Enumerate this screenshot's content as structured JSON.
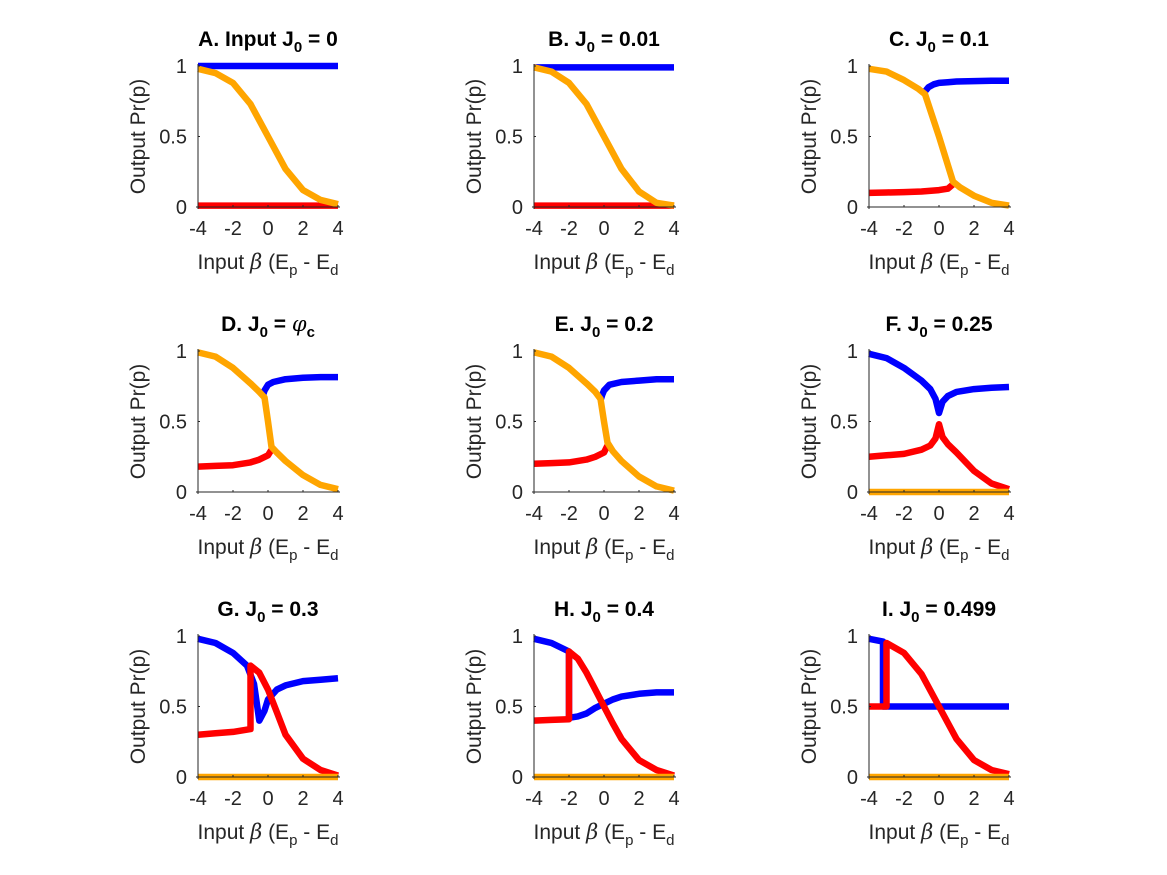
{
  "figure": {
    "colors": {
      "blue": "#0000ff",
      "red": "#ff0000",
      "orange": "#ffa500",
      "axis": "#262626"
    }
  },
  "chart_data": [
    {
      "panel": "A",
      "type": "line",
      "title": "A. Input J0 = 0",
      "title_parts": {
        "prefix": "A. Input J",
        "sub": "0",
        "suffix": " = 0",
        "greek": ""
      },
      "xlabel": "Input β (Ep - Ed)",
      "ylabel": "Output Pr(p)",
      "xlim": [
        -4,
        4
      ],
      "ylim": [
        0,
        1
      ],
      "xticks": [
        -4,
        -2,
        0,
        2,
        4
      ],
      "yticks": [
        0,
        0.5,
        1
      ],
      "series": [
        {
          "name": "blue",
          "color": "#0000ff",
          "x": [
            -4,
            4
          ],
          "y": [
            1,
            1
          ]
        },
        {
          "name": "red",
          "color": "#ff0000",
          "x": [
            -4,
            4
          ],
          "y": [
            0.01,
            0.01
          ]
        },
        {
          "name": "orange",
          "color": "#ffa500",
          "x": [
            -4,
            -3,
            -2,
            -1,
            0,
            1,
            2,
            3,
            4
          ],
          "y": [
            0.98,
            0.95,
            0.88,
            0.73,
            0.5,
            0.27,
            0.12,
            0.05,
            0.02
          ]
        }
      ]
    },
    {
      "panel": "B",
      "type": "line",
      "title": "B. J0 = 0.01",
      "title_parts": {
        "prefix": "B. J",
        "sub": "0",
        "suffix": " = 0.01",
        "greek": ""
      },
      "xlabel": "Input β (Ep - Ed)",
      "ylabel": "Output Pr(p)",
      "xlim": [
        -4,
        4
      ],
      "ylim": [
        0,
        1
      ],
      "xticks": [
        -4,
        -2,
        0,
        2,
        4
      ],
      "yticks": [
        0,
        0.5,
        1
      ],
      "series": [
        {
          "name": "blue",
          "color": "#0000ff",
          "x": [
            -4,
            4
          ],
          "y": [
            0.99,
            0.99
          ]
        },
        {
          "name": "red",
          "color": "#ff0000",
          "x": [
            -4,
            4
          ],
          "y": [
            0.01,
            0.01
          ]
        },
        {
          "name": "orange",
          "color": "#ffa500",
          "x": [
            -4,
            -3,
            -2,
            -1,
            0,
            1,
            2,
            3,
            4
          ],
          "y": [
            0.99,
            0.96,
            0.88,
            0.73,
            0.5,
            0.27,
            0.11,
            0.03,
            0.01
          ]
        }
      ]
    },
    {
      "panel": "C",
      "type": "line",
      "title": "C. J0 = 0.1",
      "title_parts": {
        "prefix": "C. J",
        "sub": "0",
        "suffix": " = 0.1",
        "greek": ""
      },
      "xlabel": "Input β (Ep - Ed)",
      "ylabel": "Output Pr(p)",
      "xlim": [
        -4,
        4
      ],
      "ylim": [
        0,
        1
      ],
      "xticks": [
        -4,
        -2,
        0,
        2,
        4
      ],
      "yticks": [
        0,
        0.5,
        1
      ],
      "series": [
        {
          "name": "blue",
          "color": "#0000ff",
          "x": [
            -0.8,
            -0.6,
            -0.3,
            0,
            0.5,
            1,
            2,
            3,
            4
          ],
          "y": [
            0.82,
            0.85,
            0.87,
            0.88,
            0.885,
            0.89,
            0.893,
            0.895,
            0.896
          ]
        },
        {
          "name": "red",
          "color": "#ff0000",
          "x": [
            -4,
            -3,
            -2,
            -1,
            0,
            0.5,
            0.8
          ],
          "y": [
            0.1,
            0.103,
            0.106,
            0.11,
            0.12,
            0.13,
            0.16
          ]
        },
        {
          "name": "orange",
          "color": "#ffa500",
          "x": [
            -4,
            -3,
            -2,
            -1.2,
            -0.8,
            0,
            0.8,
            1.2,
            2,
            3,
            4
          ],
          "y": [
            0.98,
            0.96,
            0.9,
            0.84,
            0.8,
            0.5,
            0.18,
            0.14,
            0.08,
            0.03,
            0.01
          ]
        }
      ]
    },
    {
      "panel": "D",
      "type": "line",
      "title": "D. J0 = φc",
      "title_parts": {
        "prefix": "D. J",
        "sub": "0",
        "suffix": " = ",
        "greek": "φ",
        "greek_sub": "c"
      },
      "xlabel": "Input β (Ep - Ed)",
      "ylabel": "Output Pr(p)",
      "xlim": [
        -4,
        4
      ],
      "ylim": [
        0,
        1
      ],
      "xticks": [
        -4,
        -2,
        0,
        2,
        4
      ],
      "yticks": [
        0,
        0.5,
        1
      ],
      "series": [
        {
          "name": "blue",
          "color": "#0000ff",
          "x": [
            -0.3,
            -0.2,
            0,
            0.3,
            1,
            2,
            3,
            4
          ],
          "y": [
            0.68,
            0.72,
            0.76,
            0.78,
            0.8,
            0.81,
            0.815,
            0.815
          ]
        },
        {
          "name": "red",
          "color": "#ff0000",
          "x": [
            -4,
            -3,
            -2,
            -1,
            -0.5,
            0,
            0.2
          ],
          "y": [
            0.18,
            0.185,
            0.19,
            0.21,
            0.23,
            0.26,
            0.3
          ]
        },
        {
          "name": "orange",
          "color": "#ffa500",
          "x": [
            -4,
            -3,
            -2,
            -1,
            -0.5,
            -0.2,
            0,
            0.2,
            0.5,
            1,
            2,
            3,
            4
          ],
          "y": [
            0.99,
            0.96,
            0.88,
            0.77,
            0.71,
            0.67,
            0.5,
            0.32,
            0.28,
            0.22,
            0.12,
            0.05,
            0.02
          ]
        }
      ]
    },
    {
      "panel": "E",
      "type": "line",
      "title": "E. J0 = 0.2",
      "title_parts": {
        "prefix": "E. J",
        "sub": "0",
        "suffix": " = 0.2",
        "greek": ""
      },
      "xlabel": "Input β (Ep - Ed)",
      "ylabel": "Output Pr(p)",
      "xlim": [
        -4,
        4
      ],
      "ylim": [
        0,
        1
      ],
      "xticks": [
        -4,
        -2,
        0,
        2,
        4
      ],
      "yticks": [
        0,
        0.5,
        1
      ],
      "series": [
        {
          "name": "blue",
          "color": "#0000ff",
          "x": [
            -0.2,
            -0.1,
            0,
            0.3,
            1,
            2,
            3,
            4
          ],
          "y": [
            0.65,
            0.69,
            0.72,
            0.76,
            0.78,
            0.79,
            0.8,
            0.8
          ]
        },
        {
          "name": "red",
          "color": "#ff0000",
          "x": [
            -4,
            -3,
            -2,
            -1,
            -0.5,
            0,
            0.2
          ],
          "y": [
            0.2,
            0.205,
            0.21,
            0.23,
            0.25,
            0.28,
            0.33
          ]
        },
        {
          "name": "orange",
          "color": "#ffa500",
          "x": [
            -4,
            -3,
            -2,
            -1,
            -0.5,
            -0.2,
            0,
            0.2,
            0.5,
            1,
            2,
            3,
            4
          ],
          "y": [
            0.99,
            0.96,
            0.88,
            0.77,
            0.71,
            0.66,
            0.5,
            0.35,
            0.29,
            0.22,
            0.11,
            0.04,
            0.01
          ]
        }
      ]
    },
    {
      "panel": "F",
      "type": "line",
      "title": "F. J0 = 0.25",
      "title_parts": {
        "prefix": "F. J",
        "sub": "0",
        "suffix": " = 0.25",
        "greek": ""
      },
      "xlabel": "Input β (Ep - Ed)",
      "ylabel": "Output Pr(p)",
      "xlim": [
        -4,
        4
      ],
      "ylim": [
        0,
        1
      ],
      "xticks": [
        -4,
        -2,
        0,
        2,
        4
      ],
      "yticks": [
        0,
        0.5,
        1
      ],
      "series": [
        {
          "name": "blue",
          "color": "#0000ff",
          "x": [
            -4,
            -3,
            -2,
            -1,
            -0.5,
            -0.2,
            0,
            0.2,
            0.5,
            1,
            2,
            3,
            4
          ],
          "y": [
            0.98,
            0.95,
            0.88,
            0.79,
            0.73,
            0.66,
            0.56,
            0.64,
            0.68,
            0.71,
            0.73,
            0.74,
            0.745
          ]
        },
        {
          "name": "red",
          "color": "#ff0000",
          "x": [
            -4,
            -3,
            -2,
            -1,
            -0.5,
            -0.2,
            0,
            0.2,
            0.5,
            1,
            2,
            3,
            4
          ],
          "y": [
            0.25,
            0.26,
            0.27,
            0.3,
            0.33,
            0.38,
            0.48,
            0.39,
            0.34,
            0.28,
            0.15,
            0.06,
            0.02
          ]
        },
        {
          "name": "orange",
          "color": "#ffa500",
          "x": [
            -4,
            4
          ],
          "y": [
            0,
            0
          ]
        }
      ]
    },
    {
      "panel": "G",
      "type": "line",
      "title": "G. J0 = 0.3",
      "title_parts": {
        "prefix": "G. J",
        "sub": "0",
        "suffix": " = 0.3",
        "greek": ""
      },
      "xlabel": "Input β (Ep - Ed)",
      "ylabel": "Output Pr(p)",
      "xlim": [
        -4,
        4
      ],
      "ylim": [
        0,
        1
      ],
      "xticks": [
        -4,
        -2,
        0,
        2,
        4
      ],
      "yticks": [
        0,
        0.5,
        1
      ],
      "series": [
        {
          "name": "blue",
          "color": "#0000ff",
          "x": [
            -4,
            -3,
            -2,
            -1.2,
            -0.8,
            -0.5,
            -0.2,
            0,
            0.5,
            1,
            2,
            3,
            4
          ],
          "y": [
            0.98,
            0.95,
            0.88,
            0.79,
            0.66,
            0.4,
            0.47,
            0.55,
            0.62,
            0.65,
            0.68,
            0.69,
            0.7
          ]
        },
        {
          "name": "red",
          "color": "#ff0000",
          "x": [
            -4,
            -3,
            -2,
            -1,
            -1,
            -0.5,
            0,
            0.5,
            1,
            2,
            3,
            4
          ],
          "y": [
            0.3,
            0.31,
            0.32,
            0.34,
            0.79,
            0.74,
            0.62,
            0.46,
            0.3,
            0.13,
            0.05,
            0.01
          ]
        },
        {
          "name": "orange",
          "color": "#ffa500",
          "x": [
            -4,
            4
          ],
          "y": [
            0,
            0
          ]
        }
      ]
    },
    {
      "panel": "H",
      "type": "line",
      "title": "H. J0 = 0.4",
      "title_parts": {
        "prefix": "H. J",
        "sub": "0",
        "suffix": " = 0.4",
        "greek": ""
      },
      "xlabel": "Input β (Ep - Ed)",
      "ylabel": "Output Pr(p)",
      "xlim": [
        -4,
        4
      ],
      "ylim": [
        0,
        1
      ],
      "xticks": [
        -4,
        -2,
        0,
        2,
        4
      ],
      "yticks": [
        0,
        0.5,
        1
      ],
      "series": [
        {
          "name": "blue",
          "color": "#0000ff",
          "x": [
            -4,
            -3,
            -2,
            -2,
            -1.5,
            -1,
            -0.5,
            0,
            0.5,
            1,
            2,
            3,
            4
          ],
          "y": [
            0.98,
            0.95,
            0.89,
            0.42,
            0.43,
            0.45,
            0.49,
            0.52,
            0.55,
            0.57,
            0.59,
            0.6,
            0.6
          ]
        },
        {
          "name": "red",
          "color": "#ff0000",
          "x": [
            -4,
            -3,
            -2,
            -2,
            -1.5,
            -1,
            -0.5,
            0,
            0.5,
            1,
            2,
            3,
            4
          ],
          "y": [
            0.4,
            0.405,
            0.41,
            0.89,
            0.84,
            0.74,
            0.62,
            0.5,
            0.38,
            0.27,
            0.12,
            0.05,
            0.01
          ]
        },
        {
          "name": "orange",
          "color": "#ffa500",
          "x": [
            -4,
            4
          ],
          "y": [
            0,
            0
          ]
        }
      ]
    },
    {
      "panel": "I",
      "type": "line",
      "title": "I. J0 = 0.499",
      "title_parts": {
        "prefix": "I. J",
        "sub": "0",
        "suffix": " = 0.499",
        "greek": ""
      },
      "xlabel": "Input β (Ep - Ed)",
      "ylabel": "Output Pr(p)",
      "xlim": [
        -4,
        4
      ],
      "ylim": [
        0,
        1
      ],
      "xticks": [
        -4,
        -2,
        0,
        2,
        4
      ],
      "yticks": [
        0,
        0.5,
        1
      ],
      "series": [
        {
          "name": "blue",
          "color": "#0000ff",
          "x": [
            -4,
            -3.6,
            -3.2,
            -3.2,
            4
          ],
          "y": [
            0.98,
            0.97,
            0.96,
            0.5,
            0.5
          ]
        },
        {
          "name": "red",
          "color": "#ff0000",
          "x": [
            -4,
            -3,
            -3,
            -2,
            -1,
            0,
            1,
            2,
            3,
            4
          ],
          "y": [
            0.5,
            0.5,
            0.95,
            0.88,
            0.73,
            0.5,
            0.27,
            0.12,
            0.05,
            0.02
          ]
        },
        {
          "name": "orange",
          "color": "#ffa500",
          "x": [
            -4,
            4
          ],
          "y": [
            0,
            0
          ]
        }
      ]
    }
  ]
}
